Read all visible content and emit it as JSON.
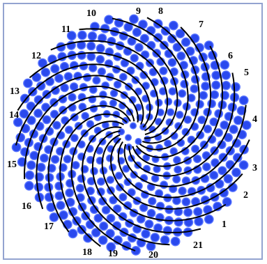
{
  "figure": {
    "spiral_labels": [
      "1",
      "2",
      "3",
      "4",
      "5",
      "6",
      "7",
      "8",
      "9",
      "10",
      "11",
      "12",
      "13",
      "14",
      "15",
      "16",
      "17",
      "18",
      "19",
      "20",
      "21"
    ],
    "disc_color": "#2a49ee",
    "disc_highlight": "#5a76ff",
    "spiral_color": "#000000",
    "frame_color": "#93a3d0"
  }
}
